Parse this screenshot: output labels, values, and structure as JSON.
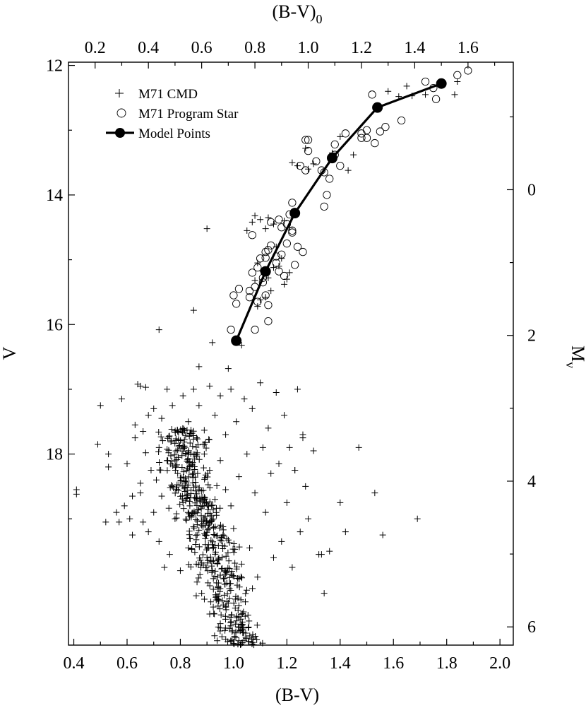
{
  "chart_data": {
    "type": "scatter",
    "axes": {
      "bottom": {
        "label": "(B-V)",
        "range": [
          0.38,
          2.05
        ],
        "ticks": [
          "0.4",
          "0.6",
          "0.8",
          "1.0",
          "1.2",
          "1.4",
          "1.6",
          "1.8",
          "2.0"
        ]
      },
      "left": {
        "label": "V",
        "range": [
          11.95,
          20.95
        ],
        "inverted": true,
        "ticks": [
          "12",
          "14",
          "16",
          "18"
        ]
      },
      "top": {
        "label_main": "(B-V)",
        "label_sub": "0",
        "range": [
          0.1,
          1.77
        ],
        "ticks": [
          "0.2",
          "0.4",
          "0.6",
          "0.8",
          "1.0",
          "1.2",
          "1.4",
          "1.6"
        ]
      },
      "right": {
        "label_main": "M",
        "label_sub": "v",
        "range": [
          -1.75,
          6.25
        ],
        "inverted": true,
        "ticks": [
          "0",
          "2",
          "4",
          "6"
        ]
      }
    },
    "legend": {
      "position": "top-left",
      "entries": [
        "M71 CMD",
        "M71 Program Star",
        "Model Points"
      ]
    },
    "series": [
      {
        "name": "M71 CMD",
        "marker": "plus",
        "cmd_upper": [
          [
            1.08,
            14.32
          ],
          [
            1.1,
            14.38
          ],
          [
            1.07,
            14.42
          ],
          [
            1.13,
            14.35
          ],
          [
            1.15,
            14.45
          ],
          [
            1.12,
            14.52
          ],
          [
            1.05,
            14.55
          ],
          [
            0.9,
            14.52
          ],
          [
            1.09,
            15.05
          ],
          [
            1.11,
            15.18
          ],
          [
            1.13,
            15.28
          ],
          [
            1.08,
            15.32
          ],
          [
            1.15,
            15.12
          ],
          [
            1.18,
            14.98
          ],
          [
            1.2,
            15.3
          ],
          [
            1.19,
            15.38
          ],
          [
            1.14,
            15.48
          ],
          [
            1.12,
            15.58
          ],
          [
            1.1,
            15.62
          ],
          [
            1.09,
            15.72
          ],
          [
            1.17,
            15.1
          ],
          [
            1.21,
            15.2
          ],
          [
            1.16,
            14.8
          ],
          [
            1.19,
            14.4
          ],
          [
            1.21,
            14.5
          ],
          [
            0.85,
            15.78
          ],
          [
            0.72,
            16.08
          ],
          [
            0.92,
            16.28
          ],
          [
            1.03,
            16.32
          ],
          [
            0.87,
            16.65
          ],
          [
            0.98,
            16.68
          ],
          [
            1.22,
            13.5
          ],
          [
            1.24,
            13.55
          ],
          [
            1.27,
            13.28
          ],
          [
            1.3,
            13.52
          ],
          [
            1.37,
            13.35
          ],
          [
            1.4,
            13.1
          ],
          [
            1.45,
            13.38
          ],
          [
            1.43,
            13.62
          ],
          [
            1.58,
            12.4
          ],
          [
            1.62,
            12.48
          ],
          [
            1.65,
            12.32
          ],
          [
            1.67,
            12.47
          ],
          [
            1.72,
            12.45
          ],
          [
            1.83,
            12.45
          ],
          [
            1.84,
            12.25
          ],
          [
            1.28,
            13.6
          ]
        ],
        "cmd_main_sequence": [
          [
            0.41,
            18.55
          ],
          [
            0.41,
            18.62
          ],
          [
            0.49,
            17.85
          ],
          [
            0.5,
            17.25
          ],
          [
            0.52,
            19.05
          ],
          [
            0.53,
            18.0
          ],
          [
            0.53,
            18.2
          ],
          [
            0.56,
            18.9
          ],
          [
            0.57,
            19.05
          ],
          [
            0.58,
            17.15
          ],
          [
            0.59,
            18.8
          ],
          [
            0.6,
            18.15
          ],
          [
            0.61,
            19.0
          ],
          [
            0.62,
            18.65
          ],
          [
            0.62,
            19.25
          ],
          [
            0.63,
            17.55
          ],
          [
            0.63,
            17.75
          ],
          [
            0.64,
            16.92
          ],
          [
            0.65,
            16.95
          ],
          [
            0.65,
            18.45
          ],
          [
            0.65,
            18.6
          ],
          [
            0.66,
            19.05
          ],
          [
            0.66,
            17.65
          ],
          [
            0.67,
            16.97
          ],
          [
            0.67,
            17.98
          ],
          [
            0.68,
            19.2
          ],
          [
            0.68,
            17.4
          ],
          [
            0.69,
            18.25
          ],
          [
            0.7,
            18.9
          ],
          [
            0.7,
            17.3
          ],
          [
            0.71,
            18.4
          ],
          [
            0.72,
            19.35
          ],
          [
            0.72,
            17.9
          ],
          [
            0.73,
            17.45
          ],
          [
            0.73,
            18.65
          ],
          [
            0.74,
            19.75
          ],
          [
            0.75,
            17.0
          ],
          [
            0.75,
            18.1
          ],
          [
            0.76,
            19.55
          ],
          [
            0.77,
            17.25
          ],
          [
            0.77,
            18.5
          ],
          [
            0.78,
            19.0
          ],
          [
            0.79,
            17.65
          ],
          [
            0.79,
            18.3
          ],
          [
            0.8,
            19.8
          ],
          [
            0.81,
            17.1
          ],
          [
            0.81,
            18.75
          ],
          [
            0.82,
            18.0
          ],
          [
            0.83,
            19.45
          ],
          [
            0.83,
            17.5
          ],
          [
            0.84,
            18.95
          ],
          [
            0.85,
            17.0
          ],
          [
            0.85,
            18.3
          ],
          [
            0.86,
            19.7
          ],
          [
            0.87,
            17.25
          ],
          [
            0.87,
            18.55
          ],
          [
            0.88,
            19.1
          ],
          [
            0.89,
            17.85
          ],
          [
            0.89,
            18.0
          ],
          [
            0.9,
            19.6
          ],
          [
            0.91,
            16.95
          ],
          [
            0.91,
            18.25
          ],
          [
            0.92,
            19.4
          ],
          [
            0.93,
            17.4
          ],
          [
            0.93,
            18.7
          ],
          [
            0.94,
            19.9
          ],
          [
            0.95,
            17.1
          ],
          [
            0.95,
            18.1
          ],
          [
            0.96,
            19.25
          ],
          [
            0.97,
            17.7
          ],
          [
            0.97,
            18.55
          ],
          [
            0.98,
            20.3
          ],
          [
            0.99,
            17.0
          ],
          [
            0.99,
            18.8
          ],
          [
            1.0,
            19.15
          ],
          [
            1.01,
            17.5
          ],
          [
            1.02,
            18.35
          ],
          [
            1.03,
            19.7
          ],
          [
            1.04,
            17.15
          ],
          [
            1.05,
            18.0
          ],
          [
            1.06,
            19.45
          ],
          [
            1.07,
            17.3
          ],
          [
            1.08,
            18.6
          ],
          [
            1.09,
            19.9
          ],
          [
            1.1,
            16.9
          ],
          [
            1.11,
            17.9
          ],
          [
            1.12,
            18.9
          ],
          [
            1.13,
            17.6
          ],
          [
            1.14,
            18.3
          ],
          [
            1.15,
            19.6
          ],
          [
            1.16,
            17.05
          ],
          [
            1.17,
            18.15
          ],
          [
            1.18,
            19.35
          ],
          [
            1.19,
            17.4
          ],
          [
            1.2,
            18.75
          ],
          [
            1.21,
            17.9
          ],
          [
            1.22,
            19.75
          ],
          [
            1.23,
            18.25
          ],
          [
            1.24,
            17.0
          ],
          [
            1.25,
            19.2
          ],
          [
            1.26,
            17.75
          ],
          [
            1.27,
            18.5
          ],
          [
            1.28,
            19.0
          ],
          [
            1.3,
            17.95
          ],
          [
            1.32,
            19.55
          ],
          [
            1.33,
            19.55
          ],
          [
            1.34,
            20.15
          ],
          [
            1.36,
            19.5
          ],
          [
            1.4,
            18.75
          ],
          [
            1.42,
            19.2
          ],
          [
            1.47,
            17.9
          ],
          [
            1.53,
            18.6
          ],
          [
            1.56,
            19.25
          ],
          [
            1.69,
            19.0
          ],
          [
            1.23,
            18.25
          ],
          [
            1.26,
            17.7
          ]
        ]
      },
      {
        "name": "M71 Program Star",
        "marker": "open-circle",
        "points": [
          [
            1.06,
            15.48
          ],
          [
            1.06,
            15.58
          ],
          [
            1.08,
            15.42
          ],
          [
            1.09,
            15.65
          ],
          [
            1.11,
            15.28
          ],
          [
            1.12,
            15.55
          ],
          [
            1.13,
            15.7
          ],
          [
            1.07,
            15.2
          ],
          [
            1.09,
            15.12
          ],
          [
            1.1,
            14.98
          ],
          [
            1.12,
            14.88
          ],
          [
            1.14,
            14.78
          ],
          [
            1.16,
            15.05
          ],
          [
            1.18,
            14.92
          ],
          [
            1.2,
            14.75
          ],
          [
            1.17,
            15.18
          ],
          [
            1.11,
            15.35
          ],
          [
            1.13,
            14.85
          ],
          [
            1.07,
            14.62
          ],
          [
            1.14,
            14.42
          ],
          [
            1.18,
            14.5
          ],
          [
            1.2,
            14.45
          ],
          [
            1.22,
            14.55
          ],
          [
            1.22,
            14.12
          ],
          [
            1.24,
            14.8
          ],
          [
            1.26,
            14.88
          ],
          [
            1.23,
            15.08
          ],
          [
            1.28,
            13.32
          ],
          [
            1.27,
            13.62
          ],
          [
            1.31,
            13.48
          ],
          [
            1.33,
            13.62
          ],
          [
            1.34,
            13.65
          ],
          [
            1.35,
            14.0
          ],
          [
            1.34,
            14.18
          ],
          [
            1.38,
            13.38
          ],
          [
            1.4,
            13.55
          ],
          [
            1.42,
            13.05
          ],
          [
            1.48,
            13.12
          ],
          [
            1.5,
            13.0
          ],
          [
            1.5,
            13.12
          ],
          [
            1.52,
            12.45
          ],
          [
            1.57,
            12.95
          ],
          [
            1.72,
            12.25
          ],
          [
            1.75,
            12.35
          ],
          [
            1.76,
            12.52
          ],
          [
            1.84,
            12.15
          ],
          [
            1.88,
            12.08
          ],
          [
            1.0,
            15.55
          ],
          [
            1.01,
            15.68
          ],
          [
            1.02,
            15.45
          ],
          [
            0.99,
            16.08
          ],
          [
            1.08,
            16.08
          ],
          [
            1.13,
            15.95
          ],
          [
            1.17,
            14.38
          ],
          [
            1.28,
            13.15
          ],
          [
            1.38,
            13.22
          ],
          [
            1.48,
            13.05
          ],
          [
            1.53,
            13.2
          ],
          [
            1.55,
            13.02
          ],
          [
            1.63,
            12.85
          ],
          [
            1.25,
            13.55
          ],
          [
            1.22,
            14.58
          ],
          [
            1.21,
            14.3
          ],
          [
            1.19,
            15.25
          ],
          [
            1.16,
            14.95
          ],
          [
            1.12,
            14.97
          ],
          [
            1.27,
            13.15
          ],
          [
            1.36,
            13.75
          ]
        ]
      },
      {
        "name": "Model Points",
        "marker": "filled-circle-line",
        "points": [
          [
            1.01,
            16.25
          ],
          [
            1.12,
            15.18
          ],
          [
            1.23,
            14.28
          ],
          [
            1.37,
            13.43
          ],
          [
            1.54,
            12.65
          ],
          [
            1.78,
            12.28
          ]
        ]
      }
    ]
  }
}
